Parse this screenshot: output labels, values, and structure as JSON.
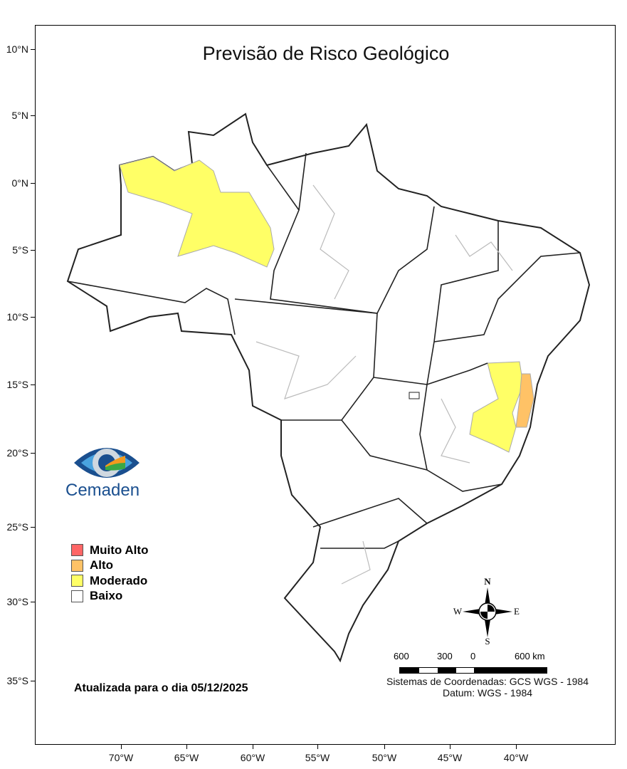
{
  "title": "Previsão de Risco Geológico",
  "lat_ticks": [
    "10°N",
    "5°N",
    "0°N",
    "5°S",
    "10°S",
    "15°S",
    "20°S",
    "25°S",
    "30°S",
    "35°S"
  ],
  "lon_ticks": [
    "70°W",
    "65°W",
    "60°W",
    "55°W",
    "50°W",
    "45°W",
    "40°W"
  ],
  "logo": {
    "text": "Cemaden"
  },
  "legend": [
    {
      "label": "Muito Alto",
      "color": "#ff6666"
    },
    {
      "label": "Alto",
      "color": "#ffc266"
    },
    {
      "label": "Moderado",
      "color": "#ffff66"
    },
    {
      "label": "Baixo",
      "color": "#ffffff"
    }
  ],
  "updated": "Atualizada para o dia 05/12/2025",
  "compass": {
    "n": "N",
    "s": "S",
    "e": "E",
    "w": "W"
  },
  "scale": {
    "labels": [
      "600",
      "300",
      "0",
      "600 km"
    ]
  },
  "coord_system": "Sistemas de Coordenadas: GCS WGS - 1984",
  "datum": "Datum: WGS - 1984"
}
